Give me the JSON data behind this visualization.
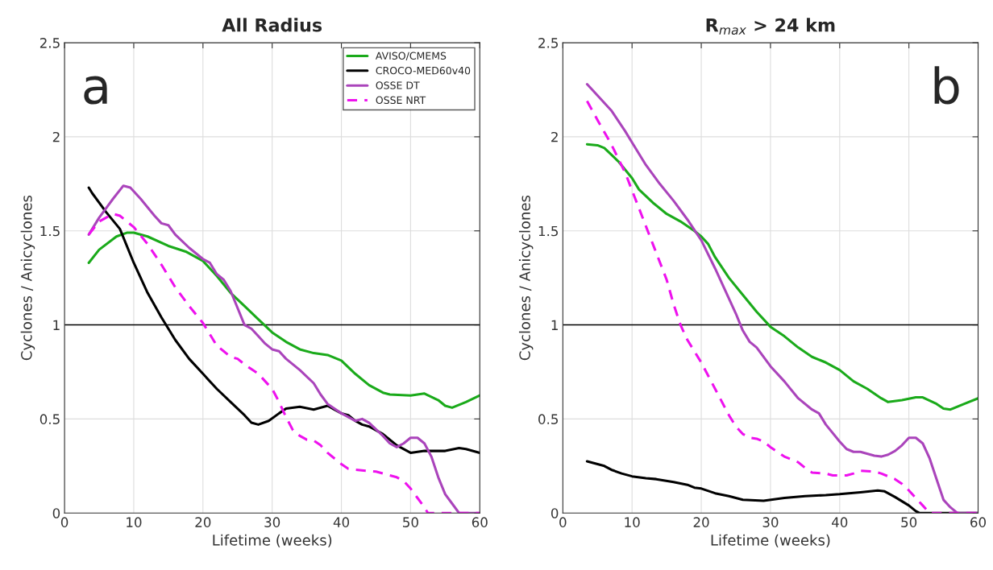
{
  "chart_data": [
    {
      "type": "line",
      "title": "All Radius",
      "xlabel": "Lifetime (weeks)",
      "ylabel": "Cyclones / Anicyclones",
      "annotations": [
        "a"
      ],
      "xlim": [
        0,
        60
      ],
      "xticks": [
        0,
        10,
        20,
        30,
        40,
        50,
        60
      ],
      "ylim": [
        0,
        2.5
      ],
      "yticks": [
        0,
        0.5,
        1,
        1.5,
        2,
        2.5
      ],
      "grid": true,
      "legend": "top right",
      "ref_lines": [
        {
          "axis": "y",
          "value": 1,
          "color": "#000000"
        }
      ],
      "series": [
        {
          "name": "AVISO/CMEMS",
          "color": "#1aaa1a",
          "line_style": "solid",
          "x": [
            3.5,
            5,
            7.5,
            9,
            10,
            12,
            15,
            17.5,
            20,
            22,
            24,
            26,
            28,
            30,
            32,
            34,
            36,
            38,
            40,
            42,
            44,
            46,
            47,
            50,
            52,
            54,
            55,
            56,
            58,
            60
          ],
          "values": [
            1.33,
            1.4,
            1.47,
            1.49,
            1.49,
            1.47,
            1.42,
            1.39,
            1.34,
            1.26,
            1.17,
            1.1,
            1.03,
            0.96,
            0.91,
            0.87,
            0.85,
            0.84,
            0.81,
            0.74,
            0.68,
            0.64,
            0.63,
            0.625,
            0.635,
            0.6,
            0.57,
            0.56,
            0.59,
            0.625
          ]
        },
        {
          "name": "CROCO-MED60v40",
          "color": "#000000",
          "line_style": "solid",
          "x": [
            3.5,
            4,
            6,
            8,
            10,
            12,
            14,
            15,
            16,
            18,
            20,
            22,
            24,
            26,
            27,
            28,
            29.5,
            31,
            32,
            34,
            36,
            38,
            40,
            41,
            42,
            43,
            44,
            46,
            48,
            50,
            52,
            55,
            57,
            58,
            60
          ],
          "values": [
            1.73,
            1.7,
            1.6,
            1.51,
            1.33,
            1.17,
            1.04,
            0.98,
            0.92,
            0.82,
            0.74,
            0.66,
            0.59,
            0.52,
            0.48,
            0.47,
            0.49,
            0.53,
            0.555,
            0.565,
            0.55,
            0.57,
            0.53,
            0.52,
            0.49,
            0.47,
            0.46,
            0.42,
            0.36,
            0.32,
            0.33,
            0.33,
            0.345,
            0.34,
            0.32
          ]
        },
        {
          "name": "OSSE DT",
          "color": "#aa44bb",
          "line_style": "solid",
          "x": [
            3.5,
            5,
            7,
            8.5,
            9.5,
            11,
            13,
            14,
            15,
            16,
            18,
            20,
            21,
            22,
            23,
            24,
            25,
            26,
            27,
            28,
            29,
            30,
            31,
            32,
            34,
            36,
            37,
            38,
            40,
            42,
            43,
            44,
            46,
            47,
            48,
            49,
            50,
            51,
            52,
            53,
            54,
            55,
            56,
            57,
            60
          ],
          "values": [
            1.48,
            1.57,
            1.67,
            1.74,
            1.73,
            1.67,
            1.58,
            1.54,
            1.53,
            1.48,
            1.41,
            1.35,
            1.33,
            1.27,
            1.24,
            1.18,
            1.09,
            1.0,
            0.98,
            0.94,
            0.9,
            0.87,
            0.86,
            0.82,
            0.76,
            0.69,
            0.63,
            0.58,
            0.53,
            0.49,
            0.5,
            0.48,
            0.41,
            0.37,
            0.35,
            0.37,
            0.4,
            0.4,
            0.37,
            0.3,
            0.19,
            0.1,
            0.05,
            0.0,
            0.0
          ]
        },
        {
          "name": "OSSE NRT",
          "color": "#ee11ee",
          "line_style": "dashed",
          "x": [
            3.5,
            5,
            7,
            8,
            10,
            12,
            14,
            16,
            18,
            20,
            22,
            23,
            24,
            25,
            26,
            28,
            30,
            31,
            32,
            33,
            34,
            35,
            36,
            37,
            38,
            40,
            41,
            42,
            45,
            47,
            48,
            49,
            50,
            51,
            52,
            52.5,
            60
          ],
          "values": [
            1.48,
            1.55,
            1.59,
            1.58,
            1.52,
            1.43,
            1.32,
            1.2,
            1.1,
            1.01,
            0.89,
            0.86,
            0.83,
            0.82,
            0.79,
            0.74,
            0.66,
            0.59,
            0.51,
            0.44,
            0.41,
            0.39,
            0.385,
            0.36,
            0.32,
            0.26,
            0.235,
            0.23,
            0.22,
            0.2,
            0.19,
            0.17,
            0.13,
            0.08,
            0.03,
            0.0,
            0.0
          ]
        }
      ]
    },
    {
      "type": "line",
      "title": "R$_{max}$ > 24 km",
      "xlabel": "Lifetime (weeks)",
      "ylabel": "Cyclones / Anicyclones",
      "annotations": [
        "b"
      ],
      "xlim": [
        0,
        60
      ],
      "xticks": [
        0,
        10,
        20,
        30,
        40,
        50,
        60
      ],
      "ylim": [
        0,
        2.5
      ],
      "yticks": [
        0,
        0.5,
        1,
        1.5,
        2,
        2.5
      ],
      "grid": true,
      "ref_lines": [
        {
          "axis": "y",
          "value": 1,
          "color": "#000000"
        }
      ],
      "series": [
        {
          "color": "#1aaa1a",
          "line_style": "solid",
          "x": [
            3.5,
            5,
            6,
            8,
            10,
            11,
            13,
            15,
            17,
            19,
            20,
            21,
            22,
            24,
            26,
            28,
            30,
            32,
            34,
            36,
            38,
            40,
            42,
            44,
            46,
            47,
            49,
            51,
            52,
            54,
            55,
            56,
            58,
            60
          ],
          "values": [
            1.96,
            1.955,
            1.94,
            1.87,
            1.78,
            1.72,
            1.65,
            1.59,
            1.55,
            1.5,
            1.47,
            1.43,
            1.36,
            1.25,
            1.16,
            1.07,
            0.99,
            0.94,
            0.88,
            0.83,
            0.8,
            0.76,
            0.7,
            0.66,
            0.61,
            0.59,
            0.6,
            0.615,
            0.615,
            0.58,
            0.555,
            0.55,
            0.58,
            0.61
          ]
        },
        {
          "color": "#000000",
          "line_style": "solid",
          "x": [
            3.5,
            6,
            7,
            8.5,
            10,
            12,
            13.5,
            16,
            18,
            19,
            20,
            22,
            24,
            26,
            29,
            32,
            35,
            38,
            40,
            43,
            45.5,
            46.5,
            48,
            50,
            51,
            51.5,
            60
          ],
          "values": [
            0.275,
            0.25,
            0.23,
            0.21,
            0.195,
            0.185,
            0.18,
            0.165,
            0.15,
            0.135,
            0.13,
            0.105,
            0.09,
            0.07,
            0.065,
            0.08,
            0.09,
            0.095,
            0.1,
            0.11,
            0.12,
            0.115,
            0.085,
            0.04,
            0.01,
            0.0,
            0.0
          ]
        },
        {
          "color": "#aa44bb",
          "line_style": "solid",
          "x": [
            3.5,
            5,
            7,
            9,
            10,
            12,
            14,
            16,
            18,
            20,
            22,
            24,
            25,
            26,
            27,
            28,
            30,
            32,
            34,
            36,
            37,
            38,
            40,
            41,
            42,
            43,
            45,
            46,
            47,
            48,
            49,
            50,
            51,
            52,
            53,
            54,
            55,
            56,
            57,
            60
          ],
          "values": [
            2.28,
            2.22,
            2.14,
            2.03,
            1.97,
            1.85,
            1.75,
            1.66,
            1.56,
            1.45,
            1.3,
            1.14,
            1.06,
            0.97,
            0.91,
            0.88,
            0.78,
            0.7,
            0.61,
            0.55,
            0.53,
            0.47,
            0.38,
            0.34,
            0.325,
            0.325,
            0.305,
            0.3,
            0.31,
            0.33,
            0.36,
            0.4,
            0.4,
            0.37,
            0.29,
            0.18,
            0.07,
            0.03,
            0.0,
            0.0
          ]
        },
        {
          "color": "#ee11ee",
          "line_style": "dashed",
          "x": [
            3.5,
            5,
            7,
            9,
            11,
            13,
            15,
            16,
            17,
            18,
            20,
            22,
            24,
            25,
            26,
            27,
            28,
            29,
            30,
            32,
            34,
            35,
            36,
            38,
            39,
            41,
            42,
            43,
            45,
            46,
            48,
            49,
            50,
            51,
            52,
            53,
            60
          ],
          "values": [
            2.19,
            2.09,
            1.96,
            1.81,
            1.62,
            1.43,
            1.24,
            1.11,
            1.0,
            0.92,
            0.8,
            0.66,
            0.52,
            0.46,
            0.42,
            0.4,
            0.395,
            0.38,
            0.35,
            0.3,
            0.27,
            0.24,
            0.215,
            0.21,
            0.2,
            0.2,
            0.21,
            0.225,
            0.22,
            0.21,
            0.18,
            0.155,
            0.12,
            0.08,
            0.04,
            0.0,
            0.0
          ]
        }
      ]
    }
  ]
}
